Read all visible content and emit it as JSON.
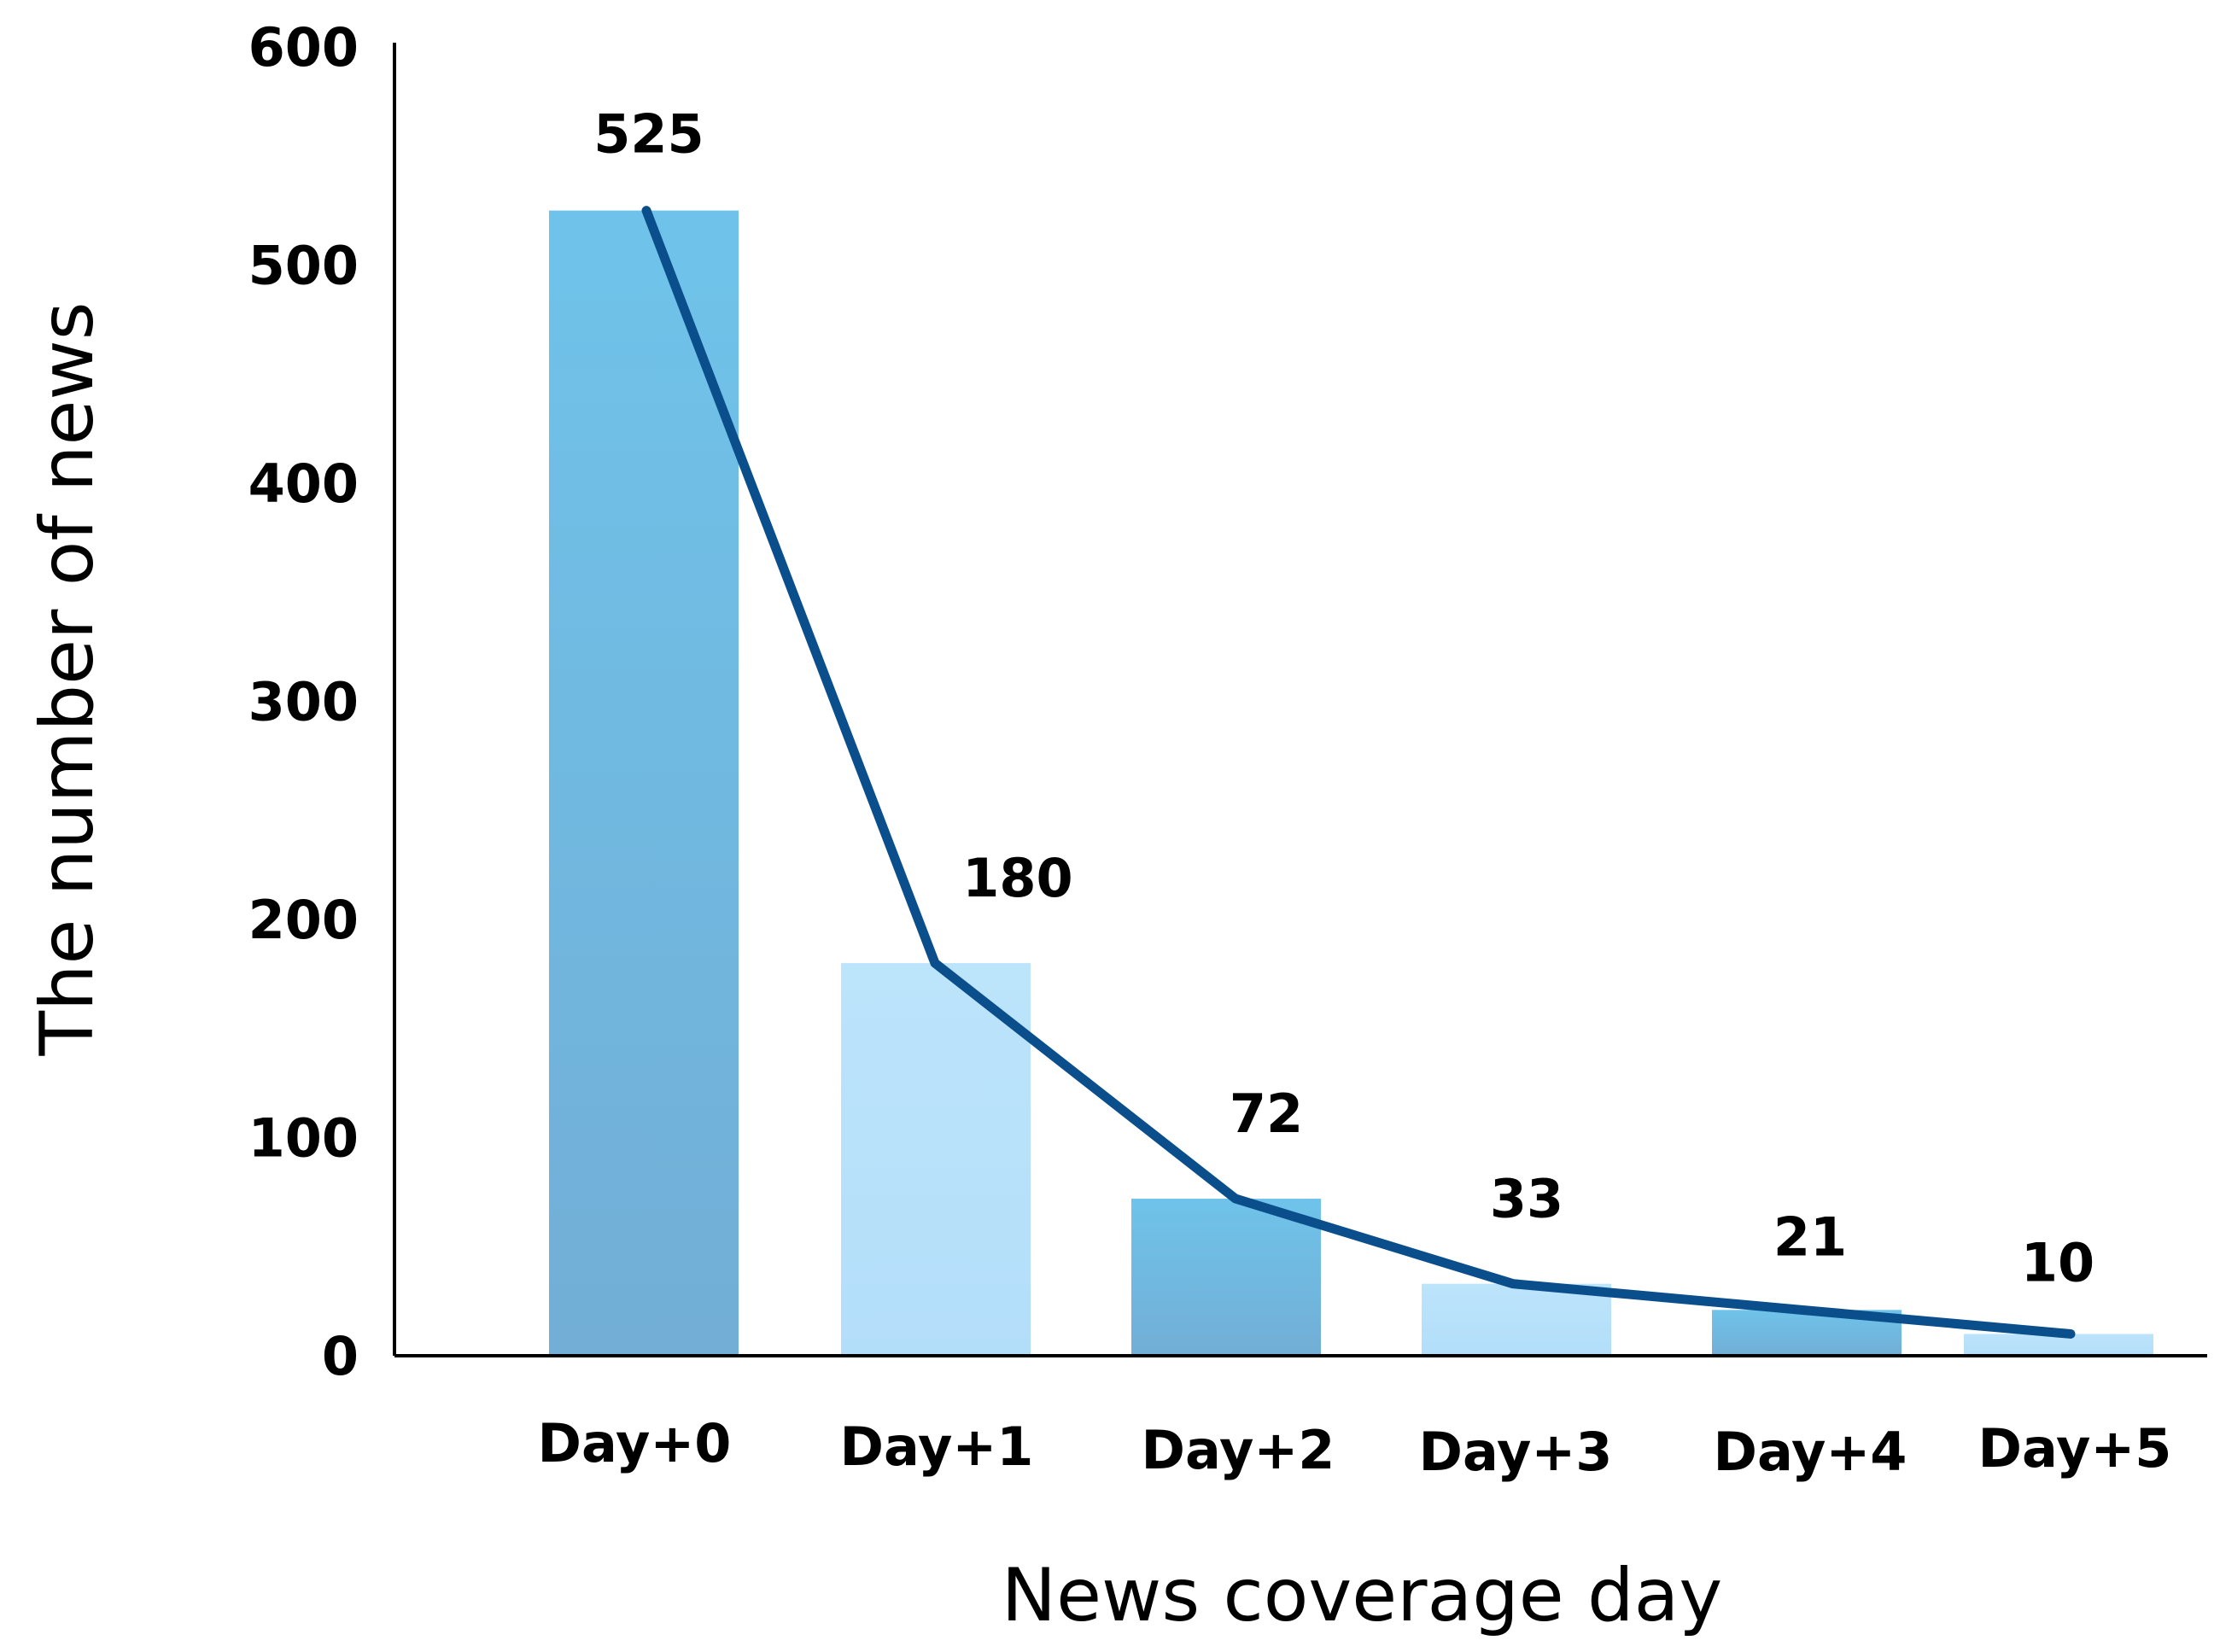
{
  "chart_data": {
    "type": "bar",
    "title": "",
    "xlabel": "News coverage day",
    "ylabel": "The number of news",
    "categories": [
      "Day+0",
      "Day+1",
      "Day+2",
      "Day+3",
      "Day+4",
      "Day+5"
    ],
    "values": [
      525,
      180,
      72,
      33,
      21,
      10
    ],
    "data_labels": [
      "525",
      "180",
      "72",
      "33",
      "21",
      "10"
    ],
    "yticks": [
      0,
      100,
      200,
      300,
      400,
      500,
      600
    ],
    "ylim": [
      0,
      600
    ],
    "grid": false,
    "legend": "none",
    "overlay_line": {
      "type": "line",
      "values": [
        525,
        180,
        72,
        33,
        21,
        10
      ],
      "color": "#0a4f8c"
    },
    "bar_colors": [
      "#6ab4df",
      "#b7e0fa",
      "#6ab4df",
      "#b7e0fa",
      "#6ab4df",
      "#b7e0fa"
    ]
  }
}
